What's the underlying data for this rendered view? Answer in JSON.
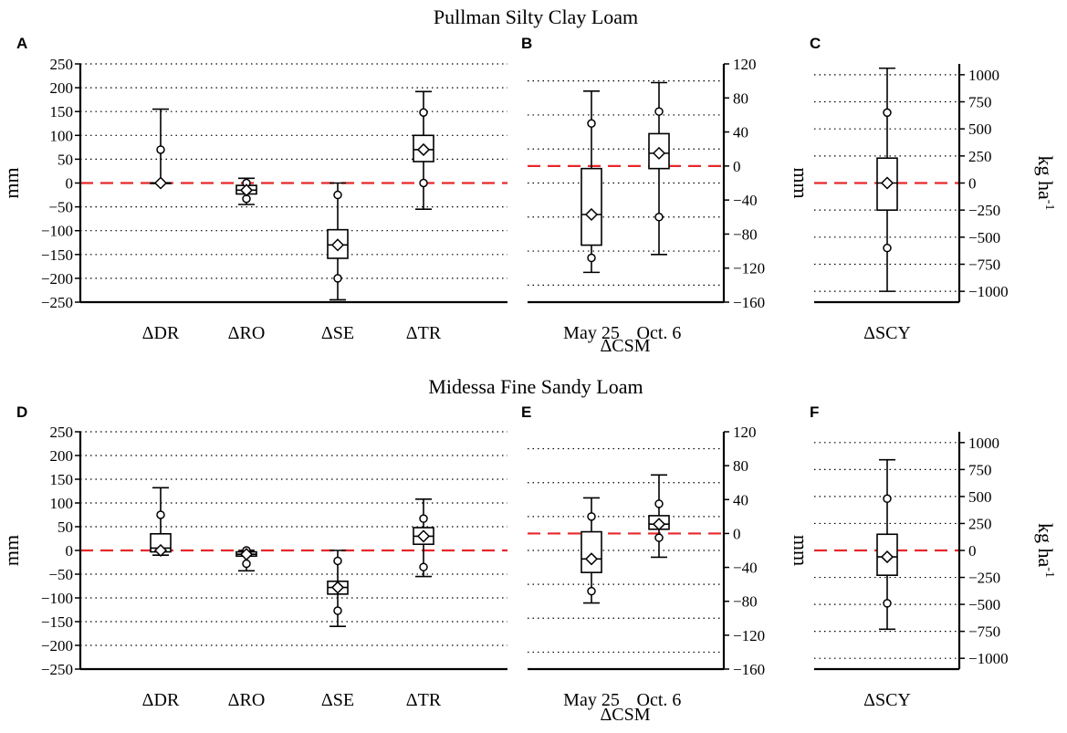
{
  "figure": {
    "row_titles": [
      "Pullman Silty Clay Loam",
      "Midessa Fine Sandy Loam"
    ]
  },
  "colors": {
    "zero_line": "#e8282b",
    "ink": "#000000",
    "grid": "#000000"
  },
  "chart_data": [
    {
      "id": "A",
      "panel_label": "A",
      "type": "boxplot",
      "ylabel": "mm",
      "ylabel_side": "left",
      "ylim": [
        -250,
        250
      ],
      "yticks": [
        250,
        200,
        150,
        100,
        50,
        0,
        -50,
        -100,
        -150,
        -200,
        -250
      ],
      "grid_values": [
        250,
        200,
        150,
        100,
        50,
        -50,
        -100,
        -150,
        -200
      ],
      "categories": [
        "ΔDR",
        "ΔRO",
        "ΔSE",
        "ΔTR"
      ],
      "xlabel": "",
      "boxes": [
        {
          "whisker_low": 0,
          "q1": 0,
          "median": 0,
          "q3": 0,
          "whisker_high": 155,
          "mean": 0,
          "p_low": 0,
          "p_high": 70
        },
        {
          "whisker_low": -45,
          "q1": -23,
          "median": -15,
          "q3": -5,
          "whisker_high": 10,
          "mean": -15,
          "p_low": -33,
          "p_high": 0
        },
        {
          "whisker_low": -245,
          "q1": -158,
          "median": -130,
          "q3": -98,
          "whisker_high": 0,
          "mean": -130,
          "p_low": -200,
          "p_high": -25
        },
        {
          "whisker_low": -55,
          "q1": 45,
          "median": 70,
          "q3": 100,
          "whisker_high": 192,
          "mean": 70,
          "p_low": 0,
          "p_high": 148
        }
      ]
    },
    {
      "id": "B",
      "panel_label": "B",
      "type": "boxplot",
      "ylabel": "mm",
      "ylabel_side": "right",
      "ylim": [
        -160,
        120
      ],
      "yticks": [
        120,
        80,
        40,
        0,
        -40,
        -80,
        -120,
        -160
      ],
      "grid_values": [
        100,
        60,
        20,
        -20,
        -60,
        -100,
        -140
      ],
      "categories": [
        "May 25",
        "Oct. 6"
      ],
      "xlabel": "ΔCSM",
      "boxes": [
        {
          "whisker_low": -125,
          "q1": -93,
          "median": -57,
          "q3": -3,
          "whisker_high": 88,
          "mean": -57,
          "p_low": -108,
          "p_high": 50
        },
        {
          "whisker_low": -104,
          "q1": -3,
          "median": 15,
          "q3": 38,
          "whisker_high": 98,
          "mean": 15,
          "p_low": -60,
          "p_high": 64
        }
      ]
    },
    {
      "id": "C",
      "panel_label": "C",
      "type": "boxplot",
      "ylabel": "kg ha-1",
      "ylabel_side": "right",
      "ylim": [
        -1100,
        1100
      ],
      "yticks": [
        1000,
        750,
        500,
        250,
        0,
        -250,
        -500,
        -750,
        -1000
      ],
      "grid_values": [
        1000,
        750,
        500,
        250,
        -250,
        -500,
        -750,
        -1000
      ],
      "categories": [
        "ΔSCY"
      ],
      "xlabel": "",
      "boxes": [
        {
          "whisker_low": -1000,
          "q1": -250,
          "median": 0,
          "q3": 230,
          "whisker_high": 1060,
          "mean": 0,
          "p_low": -600,
          "p_high": 650
        }
      ]
    },
    {
      "id": "D",
      "panel_label": "D",
      "type": "boxplot",
      "ylabel": "mm",
      "ylabel_side": "left",
      "ylim": [
        -250,
        250
      ],
      "yticks": [
        250,
        200,
        150,
        100,
        50,
        0,
        -50,
        -100,
        -150,
        -200,
        -250
      ],
      "grid_values": [
        250,
        200,
        150,
        100,
        50,
        -50,
        -100,
        -150,
        -200
      ],
      "categories": [
        "ΔDR",
        "ΔRO",
        "ΔSE",
        "ΔTR"
      ],
      "xlabel": "",
      "boxes": [
        {
          "whisker_low": -10,
          "q1": -3,
          "median": 5,
          "q3": 35,
          "whisker_high": 132,
          "mean": 0,
          "p_low": 0,
          "p_high": 75
        },
        {
          "whisker_low": -43,
          "q1": -12,
          "median": -8,
          "q3": -3,
          "whisker_high": 0,
          "mean": -8,
          "p_low": -28,
          "p_high": 0
        },
        {
          "whisker_low": -160,
          "q1": -92,
          "median": -78,
          "q3": -65,
          "whisker_high": 0,
          "mean": -78,
          "p_low": -127,
          "p_high": -22
        },
        {
          "whisker_low": -55,
          "q1": 13,
          "median": 30,
          "q3": 48,
          "whisker_high": 108,
          "mean": 30,
          "p_low": -35,
          "p_high": 67
        }
      ]
    },
    {
      "id": "E",
      "panel_label": "E",
      "type": "boxplot",
      "ylabel": "mm",
      "ylabel_side": "right",
      "ylim": [
        -160,
        120
      ],
      "yticks": [
        120,
        80,
        40,
        0,
        -40,
        -80,
        -120,
        -160
      ],
      "grid_values": [
        100,
        60,
        20,
        -20,
        -60,
        -100,
        -140
      ],
      "categories": [
        "May 25",
        "Oct. 6"
      ],
      "xlabel": "ΔCSM",
      "boxes": [
        {
          "whisker_low": -82,
          "q1": -46,
          "median": -30,
          "q3": 2,
          "whisker_high": 42,
          "mean": -30,
          "p_low": -68,
          "p_high": 20
        },
        {
          "whisker_low": -28,
          "q1": 5,
          "median": 11,
          "q3": 21,
          "whisker_high": 69,
          "mean": 11,
          "p_low": -5,
          "p_high": 35
        }
      ]
    },
    {
      "id": "F",
      "panel_label": "F",
      "type": "boxplot",
      "ylabel": "kg ha-1",
      "ylabel_side": "right",
      "ylim": [
        -1100,
        1100
      ],
      "yticks": [
        1000,
        750,
        500,
        250,
        0,
        -250,
        -500,
        -750,
        -1000
      ],
      "grid_values": [
        1000,
        750,
        500,
        250,
        -250,
        -500,
        -750,
        -1000
      ],
      "categories": [
        "ΔSCY"
      ],
      "xlabel": "",
      "boxes": [
        {
          "whisker_low": -730,
          "q1": -230,
          "median": -60,
          "q3": 150,
          "whisker_high": 840,
          "mean": -60,
          "p_low": -490,
          "p_high": 480
        }
      ]
    }
  ]
}
